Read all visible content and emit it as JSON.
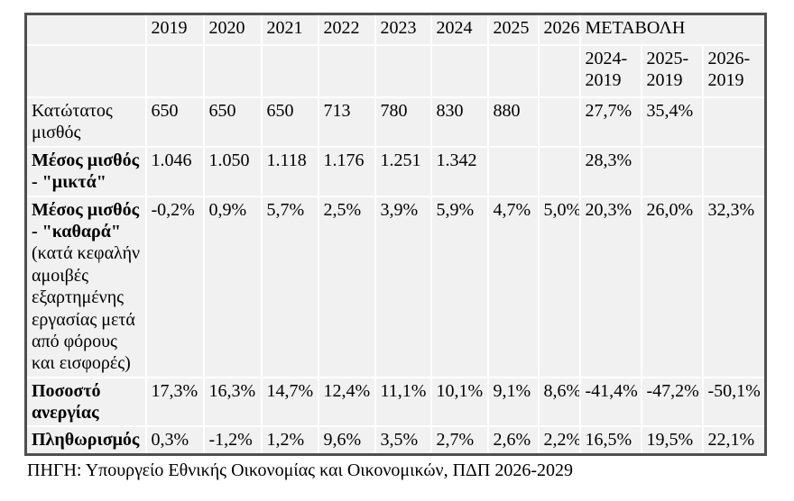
{
  "table": {
    "header": {
      "years": [
        "2019",
        "2020",
        "2021",
        "2022",
        "2023",
        "2024",
        "2025",
        "2026"
      ],
      "change_label": "ΜΕΤΑΒΟΛΗ",
      "change_periods": [
        "2024- 2019",
        "2025- 2019",
        "2026- 2019"
      ]
    },
    "rows": [
      {
        "label": "Κατώτατος μισθός",
        "label_bold": false,
        "note": "",
        "values": [
          "650",
          "650",
          "650",
          "713",
          "780",
          "830",
          "880",
          ""
        ],
        "changes": [
          "27,7%",
          "35,4%",
          ""
        ],
        "changes_bold": true
      },
      {
        "label": "Μέσος μισθός - \"μικτά\"",
        "label_bold": true,
        "note": "",
        "values": [
          "1.046",
          "1.050",
          "1.118",
          "1.176",
          "1.251",
          "1.342",
          "",
          ""
        ],
        "changes": [
          "28,3%",
          "",
          ""
        ],
        "changes_bold": true
      },
      {
        "label": "Μέσος μισθός - \"καθαρά\"",
        "label_bold": true,
        "note": "(κατά κεφαλήν αμοιβές εξαρτημένης εργασίας μετά από φόρους και εισφορές)",
        "values": [
          "-0,2%",
          "0,9%",
          "5,7%",
          "2,5%",
          "3,9%",
          "5,9%",
          "4,7%",
          "5,0%"
        ],
        "changes": [
          "20,3%",
          "26,0%",
          "32,3%"
        ],
        "changes_bold": true
      },
      {
        "label": "Ποσοστό ανεργίας",
        "label_bold": true,
        "note": "",
        "values": [
          "17,3%",
          "16,3%",
          "14,7%",
          "12,4%",
          "11,1%",
          "10,1%",
          "9,1%",
          "8,6%"
        ],
        "changes": [
          "-41,4%",
          "-47,2%",
          "-50,1%"
        ],
        "changes_bold": false
      },
      {
        "label": "Πληθωρισμός",
        "label_bold": true,
        "note": "",
        "values": [
          "0,3%",
          "-1,2%",
          "1,2%",
          "9,6%",
          "3,5%",
          "2,7%",
          "2,6%",
          "2,2%"
        ],
        "changes": [
          "16,5%",
          "19,5%",
          "22,1%"
        ],
        "changes_bold": true
      }
    ]
  },
  "footer": {
    "source": "ΠΗΓΗ: Υπουργείο Εθνικής Οικονομίας και Οικονομικών, ΠΔΠ 2026-2029"
  },
  "colors": {
    "table_background": "#f1f1f1",
    "grid_line": "#ffffff",
    "outer_border": "#4f4f4f",
    "text": "#000000",
    "page_background": "#ffffff"
  }
}
